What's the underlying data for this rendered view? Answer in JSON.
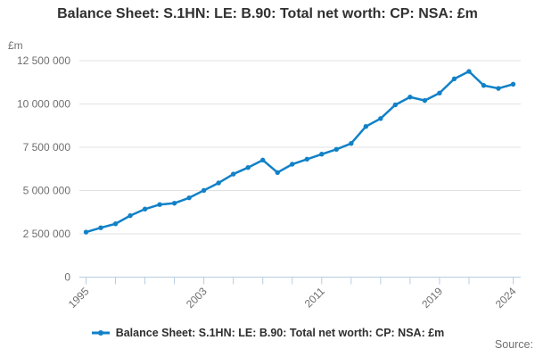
{
  "header": {
    "title": "Balance Sheet: S.1HN: LE: B.90: Total net worth: CP: NSA: £m"
  },
  "footer": {
    "source_label": "Source:"
  },
  "chart_data": {
    "type": "line",
    "title": "Balance Sheet: S.1HN: LE: B.90: Total net worth: CP: NSA: £m",
    "unit_label": "£m",
    "legend_position": "bottom",
    "grid": "horizontal-only",
    "x": [
      1995,
      1996,
      1997,
      1998,
      1999,
      2000,
      2001,
      2002,
      2003,
      2004,
      2005,
      2006,
      2007,
      2008,
      2009,
      2010,
      2011,
      2012,
      2013,
      2014,
      2015,
      2016,
      2017,
      2018,
      2019,
      2020,
      2021,
      2022,
      2023,
      2024
    ],
    "series": [
      {
        "name": "Balance Sheet: S.1HN: LE: B.90: Total net worth: CP: NSA: £m",
        "color": "#1181c7",
        "values": [
          2600000,
          2850000,
          3080000,
          3550000,
          3930000,
          4190000,
          4270000,
          4580000,
          5010000,
          5440000,
          5950000,
          6330000,
          6760000,
          6040000,
          6520000,
          6810000,
          7100000,
          7380000,
          7720000,
          8700000,
          9160000,
          9950000,
          10400000,
          10200000,
          10630000,
          11450000,
          11880000,
          11070000,
          10900000,
          11140000
        ]
      }
    ],
    "ylim": [
      0,
      12500000
    ],
    "y_ticks": [
      0,
      2500000,
      5000000,
      7500000,
      10000000,
      12500000
    ],
    "y_tick_labels": [
      "0",
      "2 500 000",
      "5 000 000",
      "7 500 000",
      "10 000 000",
      "12 500 000"
    ],
    "x_tick_labeled_years": [
      1995,
      2003,
      2011,
      2019,
      2024
    ],
    "x_minor_tick_every_years": 2,
    "colors": {
      "line": "#1181c7",
      "axis": "#b7cde1",
      "gridline": "#e2e2e2",
      "tick_label": "#6f6f6f",
      "title_text": "#303030"
    }
  }
}
